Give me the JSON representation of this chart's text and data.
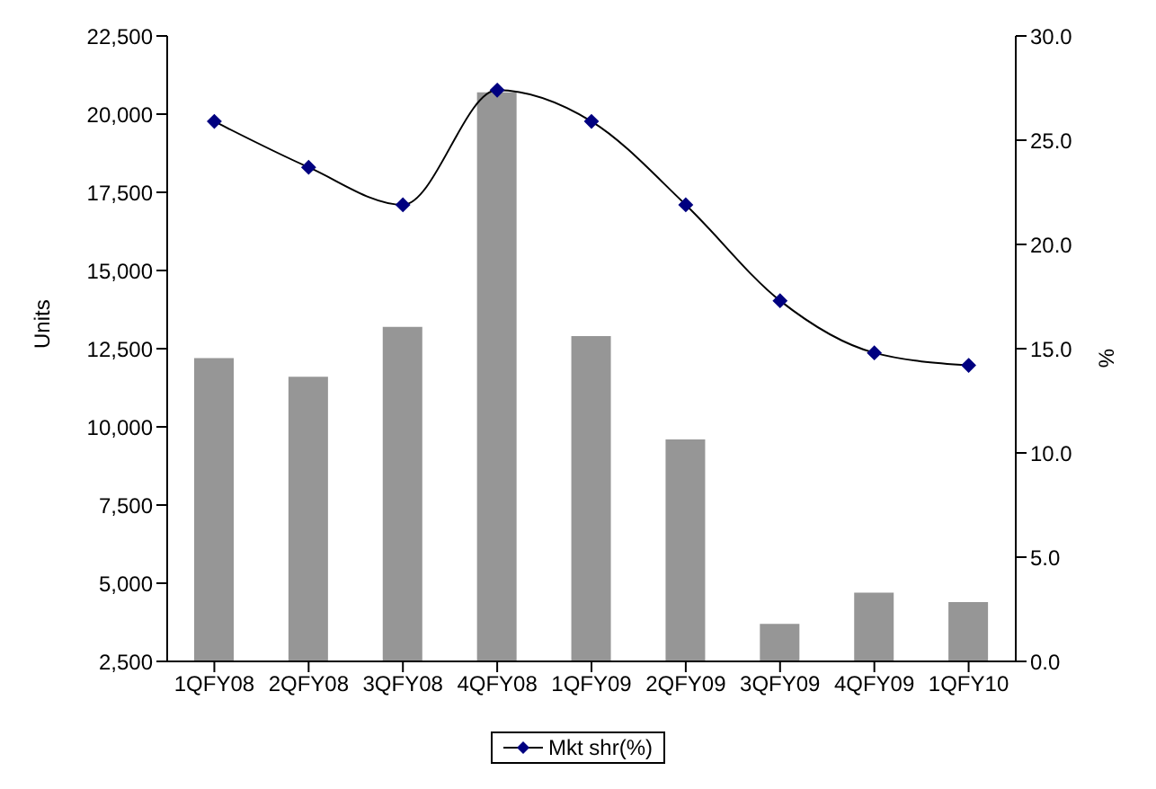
{
  "chart_data": {
    "type": "bar",
    "ylabel": "Units",
    "y2label": "%",
    "categories": [
      "1QFY08",
      "2QFY08",
      "3QFY08",
      "4QFY08",
      "1QFY09",
      "2QFY09",
      "3QFY09",
      "4QFY09",
      "1QFY10"
    ],
    "series": [
      {
        "color": "#969696",
        "values": [
          12200,
          11600,
          13200,
          20700,
          12900,
          9600,
          3700,
          4700,
          4400
        ]
      },
      {
        "type": "line",
        "name": "Mkt shr(%)",
        "color": "#000000",
        "marker": "diamond",
        "axis": "y2",
        "values": [
          25.9,
          23.7,
          21.9,
          27.4,
          25.9,
          21.9,
          17.3,
          14.8,
          14.2
        ]
      }
    ],
    "ylim": [
      2500,
      22500
    ],
    "yticks": [
      {
        "value": 2500,
        "label": "2,500"
      },
      {
        "value": 5000,
        "label": "5,000"
      },
      {
        "value": 7500,
        "label": "7,500"
      },
      {
        "value": 10000,
        "label": "10,000"
      },
      {
        "value": 12500,
        "label": "12,500"
      },
      {
        "value": 15000,
        "label": "15,000"
      },
      {
        "value": 17500,
        "label": "17,500"
      },
      {
        "value": 20000,
        "label": "20,000"
      },
      {
        "value": 22500,
        "label": "22,500"
      }
    ],
    "y2lim": [
      0,
      30
    ],
    "y2ticks": [
      {
        "value": 0,
        "label": "0.0"
      },
      {
        "value": 5,
        "label": "5.0"
      },
      {
        "value": 10,
        "label": "10.0"
      },
      {
        "value": 15,
        "label": "15.0"
      },
      {
        "value": 20,
        "label": "20.0"
      },
      {
        "value": 25,
        "label": "25.0"
      },
      {
        "value": 30,
        "label": "30.0"
      }
    ],
    "grid": false,
    "legend": "bottom"
  }
}
